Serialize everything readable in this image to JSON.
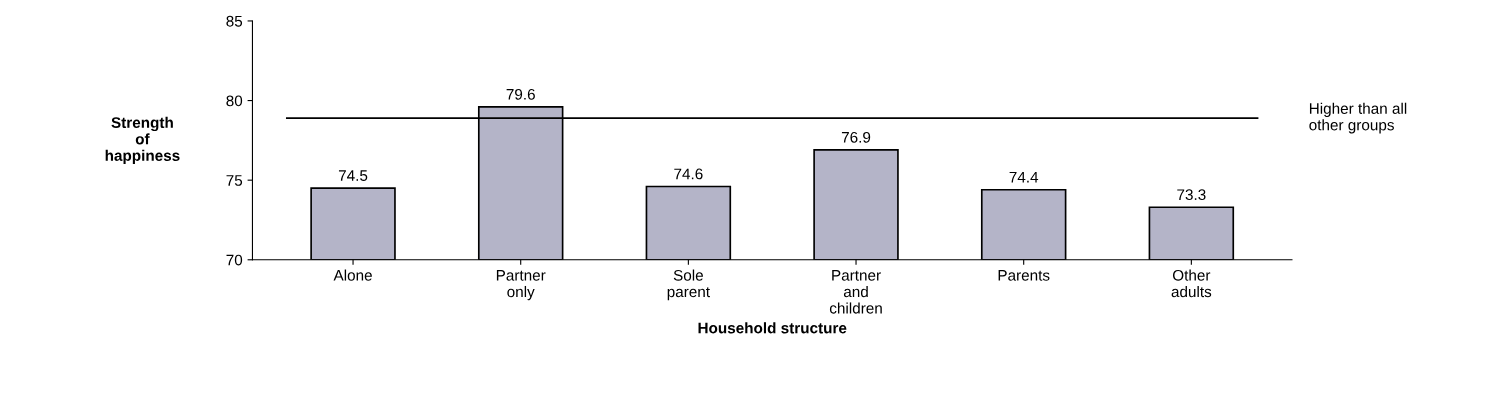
{
  "chart_data": {
    "type": "bar",
    "categories": [
      "Alone",
      "Partner\nonly",
      "Sole\nparent",
      "Partner\nand\nchildren",
      "Parents",
      "Other\nadults"
    ],
    "values": [
      74.5,
      79.6,
      74.6,
      76.9,
      74.4,
      73.3
    ],
    "color": "#b4b4c8",
    "xlabel": "Household structure",
    "ylabel": "Strength\nof\nhappiness",
    "ylim": [
      70,
      85
    ],
    "yticks": [
      70,
      75,
      80,
      85
    ],
    "data_labels": true,
    "grid": false,
    "legend": false,
    "ref_lines": [
      {
        "axis": "y",
        "value": 78.9,
        "label": "Higher than all\nother groups",
        "color": "#000000"
      }
    ]
  }
}
